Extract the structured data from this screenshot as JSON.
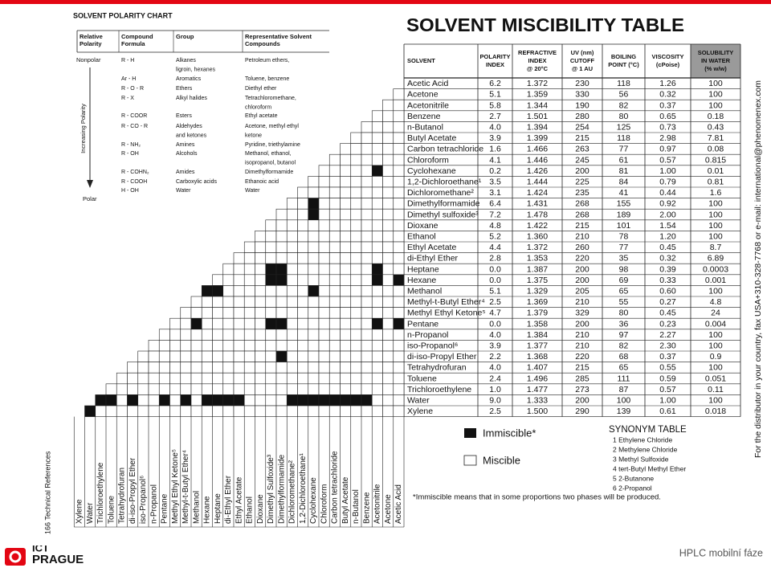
{
  "polarity_chart": {
    "title": "SOLVENT POLARITY CHART",
    "headers": [
      [
        "Relative",
        "Polarity"
      ],
      [
        "Compound",
        "Formula"
      ],
      [
        "Group"
      ],
      [
        "Representative Solvent",
        "Compounds"
      ]
    ],
    "nonpolar": "Nonpolar",
    "axis_label": "Increasing Polarity",
    "polar": "Polar",
    "rows": [
      {
        "formula": "R - H",
        "group": [
          "Alkanes",
          "ligroin, hexanes"
        ],
        "compounds": [
          "Petroleum ethers,"
        ]
      },
      {
        "formula": "Ar - H",
        "group": [
          "Aromatics"
        ],
        "compounds": [
          "Toluene, benzene"
        ]
      },
      {
        "formula": "R - O - R",
        "group": [
          "Ethers"
        ],
        "compounds": [
          "Diethyl ether"
        ]
      },
      {
        "formula": "R - X",
        "group": [
          "Alkyl halides"
        ],
        "compounds": [
          "Tetrachloromethane,",
          "chloroform"
        ]
      },
      {
        "formula": "R - COOR",
        "group": [
          "Esters"
        ],
        "compounds": [
          "Ethyl acetate"
        ]
      },
      {
        "formula": "R - CO - R",
        "group": [
          "Aldehydes",
          "and ketones"
        ],
        "compounds": [
          "Acetone, methyl ethyl",
          "ketone"
        ]
      },
      {
        "formula": "R - NH₂",
        "group": [
          "Amines"
        ],
        "compounds": [
          "Pyridine, triethylamine"
        ]
      },
      {
        "formula": "R - OH",
        "group": [
          "Alcohols"
        ],
        "compounds": [
          "Methanol, ethanol,",
          "isopropanol, butanol"
        ]
      },
      {
        "formula": "R - COHN₂",
        "group": [
          "Amides"
        ],
        "compounds": [
          "Dimethylformamide"
        ]
      },
      {
        "formula": "R - COOH",
        "group": [
          "Carboxylic acids"
        ],
        "compounds": [
          "Ethanoic acid"
        ]
      },
      {
        "formula": "H - OH",
        "group": [
          "Water"
        ],
        "compounds": [
          "Water"
        ]
      }
    ]
  },
  "miscibility_table": {
    "title": "SOLVENT MISCIBILITY TABLE",
    "headers": [
      [
        "SOLVENT"
      ],
      [
        "POLARITY",
        "INDEX"
      ],
      [
        "REFRACTIVE",
        "INDEX",
        "@ 20°C"
      ],
      [
        "UV (nm)",
        "CUTOFF",
        "@ 1 AU"
      ],
      [
        "BOILING",
        "POINT (°C)"
      ],
      [
        "VISCOSITY",
        "(cPoise)"
      ],
      [
        "SOLUBILITY",
        "IN WATER",
        "(% w/w)"
      ]
    ],
    "rows": [
      [
        "Acetic Acid",
        "6.2",
        "1.372",
        "230",
        "118",
        "1.26",
        "100"
      ],
      [
        "Acetone",
        "5.1",
        "1.359",
        "330",
        "56",
        "0.32",
        "100"
      ],
      [
        "Acetonitrile",
        "5.8",
        "1.344",
        "190",
        "82",
        "0.37",
        "100"
      ],
      [
        "Benzene",
        "2.7",
        "1.501",
        "280",
        "80",
        "0.65",
        "0.18"
      ],
      [
        "n-Butanol",
        "4.0",
        "1.394",
        "254",
        "125",
        "0.73",
        "0.43"
      ],
      [
        "Butyl Acetate",
        "3.9",
        "1.399",
        "215",
        "118",
        "2.98",
        "7.81"
      ],
      [
        "Carbon tetrachloride",
        "1.6",
        "1.466",
        "263",
        "77",
        "0.97",
        "0.08"
      ],
      [
        "Chloroform",
        "4.1",
        "1.446",
        "245",
        "61",
        "0.57",
        "0.815"
      ],
      [
        "Cyclohexane",
        "0.2",
        "1.426",
        "200",
        "81",
        "1.00",
        "0.01"
      ],
      [
        "1,2-Dichloroethane¹",
        "3.5",
        "1.444",
        "225",
        "84",
        "0.79",
        "0.81"
      ],
      [
        "Dichloromethane²",
        "3.1",
        "1.424",
        "235",
        "41",
        "0.44",
        "1.6"
      ],
      [
        "Dimethylformamide",
        "6.4",
        "1.431",
        "268",
        "155",
        "0.92",
        "100"
      ],
      [
        "Dimethyl sulfoxide³",
        "7.2",
        "1.478",
        "268",
        "189",
        "2.00",
        "100"
      ],
      [
        "Dioxane",
        "4.8",
        "1.422",
        "215",
        "101",
        "1.54",
        "100"
      ],
      [
        "Ethanol",
        "5.2",
        "1.360",
        "210",
        "78",
        "1.20",
        "100"
      ],
      [
        "Ethyl Acetate",
        "4.4",
        "1.372",
        "260",
        "77",
        "0.45",
        "8.7"
      ],
      [
        "di-Ethyl Ether",
        "2.8",
        "1.353",
        "220",
        "35",
        "0.32",
        "6.89"
      ],
      [
        "Heptane",
        "0.0",
        "1.387",
        "200",
        "98",
        "0.39",
        "0.0003"
      ],
      [
        "Hexane",
        "0.0",
        "1.375",
        "200",
        "69",
        "0.33",
        "0.001"
      ],
      [
        "Methanol",
        "5.1",
        "1.329",
        "205",
        "65",
        "0.60",
        "100"
      ],
      [
        "Methyl-t-Butyl Ether⁴",
        "2.5",
        "1.369",
        "210",
        "55",
        "0.27",
        "4.8"
      ],
      [
        "Methyl Ethyl Ketone⁵",
        "4.7",
        "1.379",
        "329",
        "80",
        "0.45",
        "24"
      ],
      [
        "Pentane",
        "0.0",
        "1.358",
        "200",
        "36",
        "0.23",
        "0.004"
      ],
      [
        "n-Propanol",
        "4.0",
        "1.384",
        "210",
        "97",
        "2.27",
        "100"
      ],
      [
        "iso-Propanol⁶",
        "3.9",
        "1.377",
        "210",
        "82",
        "2.30",
        "100"
      ],
      [
        "di-iso-Propyl Ether",
        "2.2",
        "1.368",
        "220",
        "68",
        "0.37",
        "0.9"
      ],
      [
        "Tetrahydrofuran",
        "4.0",
        "1.407",
        "215",
        "65",
        "0.55",
        "100"
      ],
      [
        "Toluene",
        "2.4",
        "1.496",
        "285",
        "111",
        "0.59",
        "0.051"
      ],
      [
        "Trichloroethylene",
        "1.0",
        "1.477",
        "273",
        "87",
        "0.57",
        "0.11"
      ],
      [
        "Water",
        "9.0",
        "1.333",
        "200",
        "100",
        "1.00",
        "100"
      ],
      [
        "Xylene",
        "2.5",
        "1.500",
        "290",
        "139",
        "0.61",
        "0.018"
      ]
    ],
    "columns": [
      "Xylene",
      "Water",
      "Trichloroethylene",
      "Toluene",
      "Tetrahydrofuran",
      "di-iso-Propyl Ether",
      "iso-Propanol⁶",
      "n-Propanol",
      "Pentane",
      "Methyl Ethyl Ketone⁵",
      "Methyl-t-Butyl Ether⁴",
      "Methanol",
      "Hexane",
      "Heptane",
      "di-Ethyl Ether",
      "Ethyl Acetate",
      "Ethanol",
      "Dioxane",
      "Dimethyl Sulfoxide³",
      "Dimethylformamide",
      "Dichloromethane²",
      "1,2-Dichloroethane¹",
      "Cyclohexane",
      "Chloroform",
      "Carbon tetrachloride",
      "Butyl Acetate",
      "n-Butanol",
      "Benzene",
      "Acetonitrile",
      "Acetone",
      "Acetic Acid"
    ],
    "immiscible": [
      [
        "Xylene",
        "Water"
      ],
      [
        "Water",
        "Trichloroethylene"
      ],
      [
        "Water",
        "Toluene"
      ],
      [
        "Water",
        "di-iso-Propyl Ether"
      ],
      [
        "Water",
        "Pentane"
      ],
      [
        "Water",
        "Methyl-t-Butyl Ether⁴"
      ],
      [
        "Water",
        "Hexane"
      ],
      [
        "Water",
        "Heptane"
      ],
      [
        "Water",
        "di-Ethyl Ether"
      ],
      [
        "Water",
        "Ethyl Acetate"
      ],
      [
        "Water",
        "Dichloromethane²"
      ],
      [
        "Water",
        "1,2-Dichloroethane¹"
      ],
      [
        "Water",
        "Cyclohexane"
      ],
      [
        "Water",
        "Chloroform"
      ],
      [
        "Water",
        "Carbon tetrachloride"
      ],
      [
        "Water",
        "Butyl Acetate"
      ],
      [
        "Water",
        "n-Butanol"
      ],
      [
        "Water",
        "Benzene"
      ],
      [
        "di-iso-Propyl Ether",
        "Dimethylformamide"
      ],
      [
        "Pentane",
        "Methanol"
      ],
      [
        "Pentane",
        "Dimethyl Sulfoxide³"
      ],
      [
        "Pentane",
        "Dimethylformamide"
      ],
      [
        "Pentane",
        "Acetonitrile"
      ],
      [
        "Pentane",
        "Acetic Acid"
      ],
      [
        "Methanol",
        "Hexane"
      ],
      [
        "Methanol",
        "Heptane"
      ],
      [
        "Methanol",
        "Cyclohexane"
      ],
      [
        "Hexane",
        "Dimethyl Sulfoxide³"
      ],
      [
        "Hexane",
        "Dimethylformamide"
      ],
      [
        "Hexane",
        "Acetonitrile"
      ],
      [
        "Hexane",
        "Acetic Acid"
      ],
      [
        "Heptane",
        "Dimethyl Sulfoxide³"
      ],
      [
        "Heptane",
        "Dimethylformamide"
      ],
      [
        "Heptane",
        "Acetonitrile"
      ],
      [
        "Dimethyl sulfoxide³",
        "Cyclohexane"
      ],
      [
        "Dimethylformamide",
        "Cyclohexane"
      ],
      [
        "Cyclohexane",
        "Acetonitrile"
      ]
    ],
    "legend": {
      "immiscible": "Immiscible*",
      "miscible": "Miscible"
    },
    "synonym_title": "SYNONYM TABLE",
    "synonyms": [
      "1 Ethylene Chloride",
      "2 Methylene Chloride",
      "3 Methyl Sulfoxide",
      "4 tert-Butyl Methyl Ether",
      "5 2-Butanone",
      "6 2-Propanol"
    ],
    "footnote": "*Immiscible means that in some proportions two phases will be produced."
  },
  "contact": "For the distributor in your country, fax  USA+310-328-7768  or e-mail: international@phenomenex.com",
  "page_ref": "166 Technical References",
  "logo": {
    "top": "ICT",
    "bottom": "PRAGUE"
  },
  "footer": "HPLC mobilní fáze"
}
